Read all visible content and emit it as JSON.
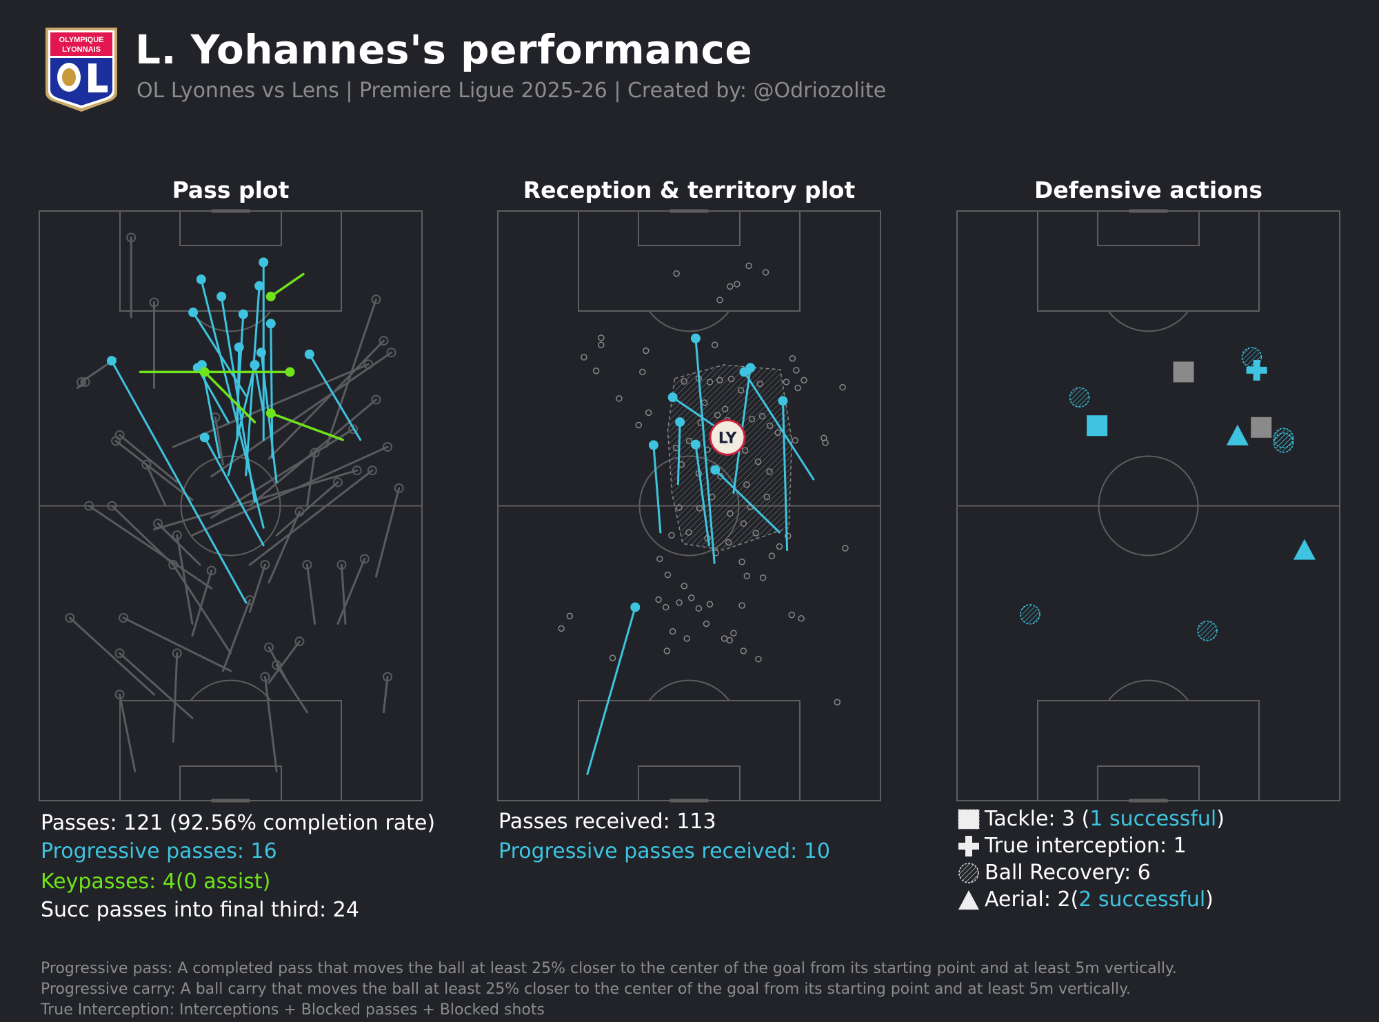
{
  "header": {
    "logo_text": [
      "OLYMPIQUE",
      "LYONNAIS",
      "OL"
    ],
    "title": "L. Yohannes's performance",
    "subtitle": "OL Lyonnes vs Lens | Premiere Ligue 2025-26 | Created by: @Odriozolite"
  },
  "colors": {
    "background": "#212328",
    "pitch_line": "#5e5e5e",
    "progressive": "#3ec4e0",
    "keypass": "#6fe31c",
    "other_pass": "#5a5a5a",
    "failed": "#8a8a8a"
  },
  "stats": {
    "passes": "Passes: 121 (92.56% completion rate)",
    "progressive": "Progressive passes: 16",
    "keypasses": "Keypasses: 4(0 assist)",
    "final_third": "Succ passes into final third: 24",
    "received": "Passes received: 113",
    "prog_received": "Progressive passes received: 10"
  },
  "legend": {
    "tackle_a": "Tackle: 3 (",
    "tackle_b": "1 successful",
    "tackle_c": ")",
    "interception": "True interception: 1",
    "recovery": "Ball Recovery: 6",
    "aerial_a": "Aerial: 2(",
    "aerial_b": "2 successful",
    "aerial_c": ")"
  },
  "footnotes": [
    "Progressive pass: A completed pass that moves the ball at least 25% closer to the center of the goal from its starting point and at least 5m vertically.",
    "Progressive carry: A ball carry that moves the ball at least 25% closer to the center of the goal from its starting point and at least 5m vertically.",
    "True Interception: Interceptions + Blocked passes + Blocked shots"
  ],
  "chart_data": [
    {
      "type": "scatter",
      "title": "Pass plot",
      "units": "percent of pitch width (x) and length from attacking goal (y)",
      "progressive_passes": [
        [
          54,
          66.4,
          18.9,
          25.4
        ],
        [
          58.6,
          53.7,
          42.3,
          11.6
        ],
        [
          56.3,
          49.3,
          47.6,
          14.5
        ],
        [
          58.6,
          38.8,
          58.6,
          8.7
        ],
        [
          54,
          44.8,
          57.5,
          12.7
        ],
        [
          51.7,
          34.3,
          53.3,
          17.5
        ],
        [
          60.9,
          41.8,
          60.5,
          19.1
        ],
        [
          51.7,
          38.8,
          52.2,
          23.1
        ],
        [
          83.9,
          38.8,
          70.6,
          24.3
        ],
        [
          58.6,
          56.7,
          43.2,
          38.4
        ],
        [
          49.4,
          35.8,
          41.4,
          26.6
        ],
        [
          49.4,
          44.8,
          56.3,
          26.1
        ],
        [
          54,
          31.3,
          40.2,
          17.2
        ],
        [
          47.1,
          41.8,
          42.5,
          26.1
        ],
        [
          58.6,
          34.3,
          56.3,
          26.1
        ],
        [
          62,
          46,
          58,
          24
        ]
      ],
      "key_passes": [
        [
          69,
          10.7,
          60.5,
          14.5
        ],
        [
          26.4,
          27.3,
          65.5,
          27.3
        ],
        [
          79.3,
          38.8,
          60.5,
          34.3
        ],
        [
          56.3,
          35.8,
          43.2,
          27.3
        ]
      ],
      "other_passes": [
        [
          24,
          18,
          24,
          4.5
        ],
        [
          30,
          30,
          30,
          15.5
        ],
        [
          10,
          30,
          12,
          29
        ],
        [
          20,
          25,
          11,
          29
        ],
        [
          40,
          49,
          20,
          39
        ],
        [
          75,
          40,
          88,
          15
        ],
        [
          60,
          42,
          90,
          22
        ],
        [
          55,
          50,
          88,
          32
        ],
        [
          45,
          45,
          92,
          24
        ],
        [
          35,
          40,
          86,
          26
        ],
        [
          30,
          54,
          83,
          44
        ],
        [
          40,
          55,
          91,
          40
        ],
        [
          55,
          60,
          87,
          44
        ],
        [
          45,
          52,
          82,
          37
        ],
        [
          62,
          55,
          78,
          46
        ],
        [
          36,
          46,
          21,
          38
        ],
        [
          35,
          60,
          19,
          50
        ],
        [
          45,
          64,
          13,
          50
        ],
        [
          60,
          63,
          68,
          51
        ],
        [
          40,
          70,
          36,
          55
        ],
        [
          50,
          75,
          35,
          60
        ],
        [
          30,
          82,
          8,
          69
        ],
        [
          50,
          78,
          22,
          69
        ],
        [
          40,
          86,
          21,
          75
        ],
        [
          60,
          80,
          68,
          73
        ],
        [
          65,
          80,
          60,
          74
        ],
        [
          72,
          70,
          70,
          60
        ],
        [
          78,
          70,
          85,
          59
        ],
        [
          88,
          62,
          94,
          47
        ],
        [
          70,
          85,
          62,
          77
        ],
        [
          35,
          90,
          36,
          75
        ],
        [
          62,
          95,
          59,
          79
        ],
        [
          40,
          72,
          45,
          61
        ],
        [
          25,
          95,
          21,
          82
        ],
        [
          48,
          78,
          55,
          66
        ],
        [
          90,
          85,
          91,
          79
        ],
        [
          33,
          50,
          28,
          43
        ],
        [
          48,
          43,
          46,
          35
        ],
        [
          70,
          50,
          72,
          41
        ],
        [
          55,
          68,
          59,
          60
        ],
        [
          42,
          60,
          31,
          53
        ],
        [
          80,
          70,
          79,
          60
        ]
      ]
    },
    {
      "type": "scatter",
      "title": "Reception & territory plot",
      "average_position_label": "LY",
      "average_position": [
        60,
        38.4
      ],
      "progressive_received": [
        [
          56.6,
          59.7,
          51.7,
          21.6
        ],
        [
          61.6,
          47.8,
          66,
          26.6
        ],
        [
          82.5,
          45.5,
          64.4,
          27.3
        ],
        [
          75.6,
          57.5,
          74.5,
          32.2
        ],
        [
          63.2,
          39.4,
          45.7,
          31.6
        ],
        [
          42.5,
          54.5,
          40.7,
          39.7
        ],
        [
          47.1,
          46.3,
          47.6,
          35.8
        ],
        [
          55.2,
          56.7,
          51.7,
          39.6
        ],
        [
          73.6,
          54.5,
          56.8,
          43.9
        ],
        [
          23.4,
          95.5,
          35.9,
          67.2
        ]
      ],
      "territory_hull": [
        [
          46.2,
          28.4
        ],
        [
          59,
          26.1
        ],
        [
          73.8,
          26.9
        ],
        [
          76.8,
          38.8
        ],
        [
          76.1,
          53.7
        ],
        [
          58.9,
          57.5
        ],
        [
          48.3,
          56.4
        ],
        [
          45.5,
          47.8
        ],
        [
          44.4,
          37.3
        ]
      ],
      "receptions": [
        [
          46.7,
          10.6
        ],
        [
          65.6,
          9.3
        ],
        [
          70,
          10.4
        ],
        [
          60.7,
          12.8
        ],
        [
          62.5,
          12.4
        ],
        [
          58,
          15.1
        ],
        [
          27,
          21.5
        ],
        [
          27,
          22.7
        ],
        [
          22.5,
          24.8
        ],
        [
          25.7,
          27.1
        ],
        [
          38.7,
          23.7
        ],
        [
          56.7,
          22.7
        ],
        [
          37.8,
          27.3
        ],
        [
          31.7,
          31.8
        ],
        [
          39.4,
          34.2
        ],
        [
          36.8,
          36.3
        ],
        [
          77,
          25
        ],
        [
          78,
          27
        ],
        [
          75.4,
          29
        ],
        [
          80,
          28.7
        ],
        [
          78.4,
          30
        ],
        [
          90.1,
          29.9
        ],
        [
          48.7,
          28.9
        ],
        [
          52.5,
          28.4
        ],
        [
          55.4,
          29
        ],
        [
          58,
          28.7
        ],
        [
          61,
          28.5
        ],
        [
          63.5,
          30.4
        ],
        [
          68.5,
          29.3
        ],
        [
          54,
          32.5
        ],
        [
          59.4,
          33.6
        ],
        [
          57.4,
          34.6
        ],
        [
          60,
          35.5
        ],
        [
          66.4,
          35.3
        ],
        [
          69.1,
          34.8
        ],
        [
          71.1,
          36.4
        ],
        [
          73.2,
          37.6
        ],
        [
          53,
          35.9
        ],
        [
          50,
          39
        ],
        [
          54.8,
          40.5
        ],
        [
          64.6,
          40.6
        ],
        [
          68,
          42.5
        ],
        [
          71,
          44.2
        ],
        [
          77.7,
          38.9
        ],
        [
          85.2,
          38.5
        ],
        [
          85.6,
          39.3
        ],
        [
          46.6,
          40.2
        ],
        [
          48,
          43
        ],
        [
          52.5,
          44.5
        ],
        [
          58.2,
          45
        ],
        [
          65,
          46.4
        ],
        [
          70.3,
          48.5
        ],
        [
          56,
          48.5
        ],
        [
          60.7,
          51.3
        ],
        [
          66,
          50.2
        ],
        [
          47.4,
          50.3
        ],
        [
          52.7,
          50.4
        ],
        [
          64.2,
          53
        ],
        [
          45.4,
          55
        ],
        [
          49.9,
          54.5
        ],
        [
          54.8,
          55.5
        ],
        [
          60.3,
          56.2
        ],
        [
          67.4,
          54.6
        ],
        [
          75.8,
          55.1
        ],
        [
          90.8,
          57.2
        ],
        [
          42.3,
          59
        ],
        [
          44.4,
          61.7
        ],
        [
          57,
          58
        ],
        [
          63.8,
          59.5
        ],
        [
          71.6,
          58.5
        ],
        [
          73.6,
          56.9
        ],
        [
          69.3,
          62.2
        ],
        [
          48.7,
          63.6
        ],
        [
          65.1,
          61.9
        ],
        [
          47.4,
          66.4
        ],
        [
          43.9,
          67.2
        ],
        [
          50.6,
          65.6
        ],
        [
          52.5,
          67.4
        ],
        [
          55.4,
          66.7
        ],
        [
          63.8,
          66.9
        ],
        [
          76.8,
          68.5
        ],
        [
          79.3,
          69.1
        ],
        [
          18.8,
          68.7
        ],
        [
          16.6,
          70.8
        ],
        [
          45.7,
          71.3
        ],
        [
          49.4,
          72.5
        ],
        [
          59.2,
          72.5
        ],
        [
          61.6,
          71.6
        ],
        [
          64.2,
          74.6
        ],
        [
          60.6,
          72.8
        ],
        [
          44.2,
          74.6
        ],
        [
          30,
          75.8
        ],
        [
          68.1,
          76
        ],
        [
          88.7,
          83.3
        ],
        [
          54.5,
          70
        ],
        [
          42,
          65.9
        ]
      ]
    },
    {
      "type": "scatter",
      "title": "Defensive actions",
      "tackles": [
        {
          "x": 59.2,
          "y": 27.3,
          "successful": false
        },
        {
          "x": 79.5,
          "y": 36.7,
          "successful": false
        },
        {
          "x": 36.6,
          "y": 36.4,
          "successful": true
        }
      ],
      "interceptions": [
        {
          "x": 78.3,
          "y": 27.0
        }
      ],
      "ball_recoveries": [
        {
          "x": 77,
          "y": 24.8
        },
        {
          "x": 32,
          "y": 31.6
        },
        {
          "x": 85.3,
          "y": 38.5
        },
        {
          "x": 85.3,
          "y": 39.3
        },
        {
          "x": 19.1,
          "y": 68.4
        },
        {
          "x": 65.4,
          "y": 71.2
        }
      ],
      "aerials": [
        {
          "x": 73.3,
          "y": 38.1,
          "successful": true
        },
        {
          "x": 90.8,
          "y": 57.5,
          "successful": true
        }
      ]
    }
  ]
}
